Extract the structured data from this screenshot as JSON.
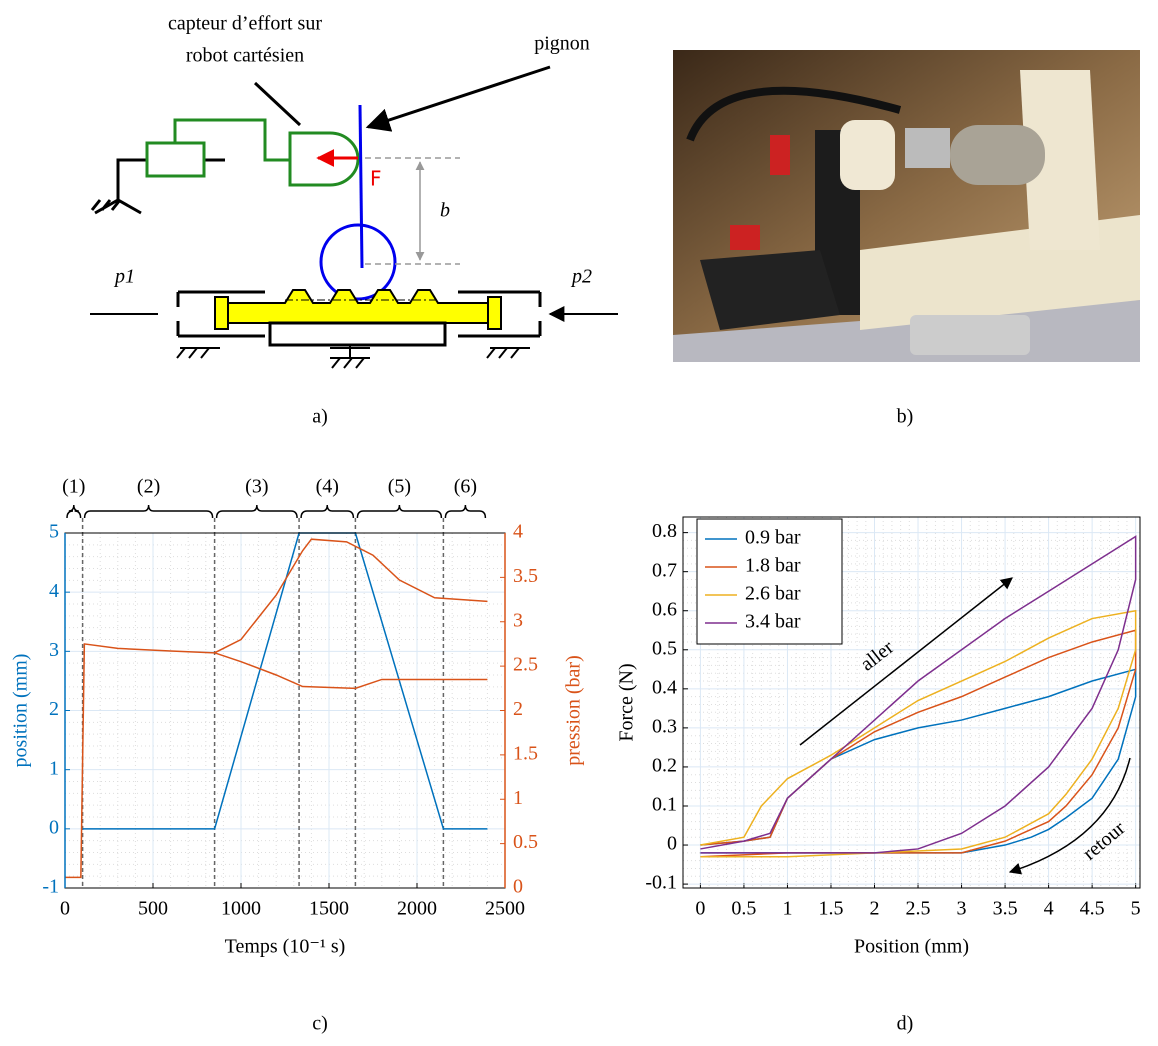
{
  "diagram": {
    "sensor_line1": "capteur d’effort sur",
    "sensor_line2": "robot cartésien",
    "pinion": "pignon",
    "force": "F",
    "distance": "b",
    "pressure_left": "p1",
    "pressure_right": "p2"
  },
  "captions": [
    "a)",
    "b)",
    "c)",
    "d)"
  ],
  "chart_data": [
    {
      "type": "line",
      "xlabel": "Temps (10⁻¹ s)",
      "ylabel": "position (mm)",
      "y2label": "pression (bar)",
      "xlim": [
        0,
        2500
      ],
      "xticks": [
        0,
        500,
        1000,
        1500,
        2000,
        2500
      ],
      "ylim": [
        -1,
        5
      ],
      "yticks": [
        -1,
        0,
        1,
        2,
        3,
        4,
        5
      ],
      "y2lim": [
        0,
        4
      ],
      "y2ticks": [
        0,
        0.5,
        1,
        1.5,
        2,
        2.5,
        3,
        3.5,
        4
      ],
      "grid": true,
      "ycolor": "#0072bd",
      "y2color": "#d95319",
      "phases": [
        {
          "label": "(1)",
          "start": 0,
          "end": 100
        },
        {
          "label": "(2)",
          "start": 100,
          "end": 850
        },
        {
          "label": "(3)",
          "start": 850,
          "end": 1330
        },
        {
          "label": "(4)",
          "start": 1330,
          "end": 1650
        },
        {
          "label": "(5)",
          "start": 1650,
          "end": 2150
        },
        {
          "label": "(6)",
          "start": 2150,
          "end": 2400
        }
      ],
      "series": [
        {
          "color": "#0072bd",
          "x": [
            100,
            850,
            1330,
            1650,
            2150,
            2400
          ],
          "values": [
            0,
            0,
            5,
            5,
            0,
            0
          ]
        },
        {
          "color": "#d95319",
          "axis": "y2",
          "x": [
            0,
            90,
            110,
            300,
            600,
            850,
            1000,
            1200,
            1350,
            1400,
            1600,
            1750,
            1900,
            2100,
            2400
          ],
          "values": [
            0.12,
            0.12,
            2.75,
            2.7,
            2.67,
            2.65,
            2.8,
            3.3,
            3.8,
            3.93,
            3.9,
            3.75,
            3.47,
            3.27,
            3.23
          ]
        },
        {
          "color": "#d95319",
          "axis": "y2",
          "x": [
            850,
            1000,
            1200,
            1350,
            1650,
            1800,
            2400
          ],
          "values": [
            2.65,
            2.55,
            2.4,
            2.27,
            2.25,
            2.35,
            2.35
          ]
        }
      ]
    },
    {
      "type": "line",
      "xlabel": "Position (mm)",
      "ylabel": "Force (N)",
      "xlim": [
        -0.2,
        5.05
      ],
      "xticks": [
        0,
        0.5,
        1,
        1.5,
        2,
        2.5,
        3,
        3.5,
        4,
        4.5,
        5
      ],
      "ylim": [
        -0.11,
        0.84
      ],
      "yticks": [
        -0.1,
        0,
        0.1,
        0.2,
        0.3,
        0.4,
        0.5,
        0.6,
        0.7,
        0.8
      ],
      "grid": true,
      "legend": "upper-left",
      "annotations": [
        "aller",
        "retour"
      ],
      "series": [
        {
          "name": "0.9 bar",
          "color": "#0072bd",
          "x": [
            0,
            0.5,
            0.8,
            1,
            1.5,
            2,
            2.5,
            3,
            3.5,
            4,
            4.5,
            5,
            5,
            4.8,
            4.5,
            4.2,
            4,
            3.8,
            3.5,
            3,
            2,
            1,
            0
          ],
          "values": [
            0,
            0.01,
            0.02,
            0.12,
            0.22,
            0.27,
            0.3,
            0.32,
            0.35,
            0.38,
            0.42,
            0.45,
            0.38,
            0.22,
            0.12,
            0.07,
            0.04,
            0.02,
            0,
            -0.02,
            -0.02,
            -0.02,
            -0.02
          ]
        },
        {
          "name": "1.8 bar",
          "color": "#d95319",
          "x": [
            0,
            0.5,
            0.8,
            1,
            1.5,
            2,
            2.5,
            3,
            3.5,
            4,
            4.5,
            5,
            5,
            4.8,
            4.5,
            4.2,
            4,
            3.5,
            3,
            2,
            1,
            0
          ],
          "values": [
            0,
            0.01,
            0.02,
            0.12,
            0.22,
            0.29,
            0.34,
            0.38,
            0.43,
            0.48,
            0.52,
            0.55,
            0.45,
            0.3,
            0.18,
            0.1,
            0.06,
            0.01,
            -0.02,
            -0.02,
            -0.02,
            -0.03
          ]
        },
        {
          "name": "2.6 bar",
          "color": "#edb120",
          "x": [
            0,
            0.5,
            0.7,
            1,
            1.5,
            2,
            2.5,
            3,
            3.5,
            4,
            4.5,
            5,
            5,
            4.8,
            4.5,
            4.2,
            4,
            3.5,
            3,
            2,
            1,
            0
          ],
          "values": [
            0,
            0.02,
            0.1,
            0.17,
            0.23,
            0.3,
            0.37,
            0.42,
            0.47,
            0.53,
            0.58,
            0.6,
            0.5,
            0.35,
            0.22,
            0.13,
            0.08,
            0.02,
            -0.01,
            -0.02,
            -0.03,
            -0.03
          ]
        },
        {
          "name": "3.4 bar",
          "color": "#7e2f8e",
          "x": [
            0,
            0.5,
            0.8,
            1,
            1.5,
            2,
            2.5,
            3,
            3.5,
            4,
            4.5,
            5,
            5,
            4.8,
            4.5,
            4,
            3.5,
            3,
            2.5,
            2,
            1,
            0
          ],
          "values": [
            -0.01,
            0.01,
            0.03,
            0.12,
            0.22,
            0.32,
            0.42,
            0.5,
            0.58,
            0.65,
            0.72,
            0.79,
            0.68,
            0.5,
            0.35,
            0.2,
            0.1,
            0.03,
            -0.01,
            -0.02,
            -0.02,
            -0.02
          ]
        }
      ]
    }
  ]
}
